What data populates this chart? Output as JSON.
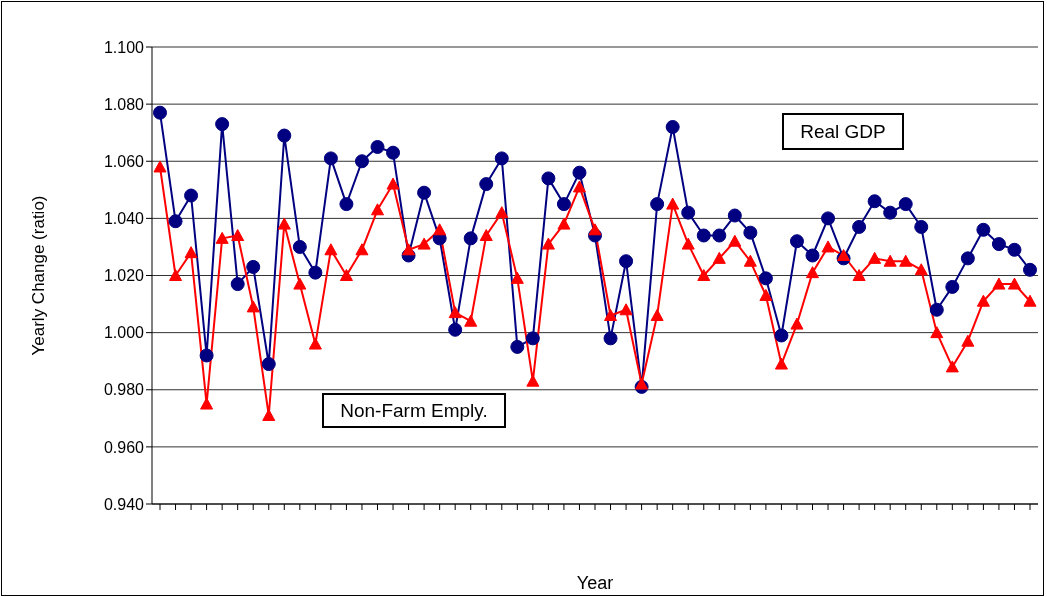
{
  "chart_data": {
    "type": "line",
    "xlabel": "Year",
    "ylabel": "Yearly Change (ratio)",
    "categories": [
      null,
      null,
      null,
      null,
      null,
      null,
      null,
      null,
      null,
      null,
      null,
      null,
      null,
      null,
      null,
      null,
      null,
      null,
      null,
      null,
      null,
      null,
      null,
      null,
      null,
      null,
      null,
      null,
      null,
      null,
      null,
      null,
      null,
      null,
      null,
      null,
      null,
      null,
      null,
      null,
      null,
      null,
      null,
      null,
      null,
      null,
      null,
      null,
      null,
      null,
      null,
      null,
      null,
      null,
      null,
      null,
      null
    ],
    "series": [
      {
        "name": "Real GDP",
        "color": "#000080",
        "marker": "circle",
        "values": [
          1.077,
          1.039,
          1.048,
          0.992,
          1.073,
          1.017,
          1.023,
          0.989,
          1.069,
          1.03,
          1.021,
          1.061,
          1.045,
          1.06,
          1.065,
          1.063,
          1.027,
          1.049,
          1.033,
          1.001,
          1.033,
          1.052,
          1.061,
          0.995,
          0.998,
          1.054,
          1.045,
          1.056,
          1.034,
          0.998,
          1.025,
          0.981,
          1.045,
          1.072,
          1.042,
          1.034,
          1.034,
          1.041,
          1.035,
          1.019,
          0.999,
          1.032,
          1.027,
          1.04,
          1.026,
          1.037,
          1.046,
          1.042,
          1.045,
          1.037,
          1.008,
          1.016,
          1.026,
          1.036,
          1.031,
          1.029,
          1.022
        ]
      },
      {
        "name": "Non-Farm Emply.",
        "color": "#ff0000",
        "marker": "triangle",
        "values": [
          1.058,
          1.02,
          1.028,
          0.975,
          1.033,
          1.034,
          1.009,
          0.971,
          1.038,
          1.017,
          0.996,
          1.029,
          1.02,
          1.029,
          1.043,
          1.052,
          1.029,
          1.031,
          1.036,
          1.007,
          1.004,
          1.034,
          1.042,
          1.019,
          0.983,
          1.031,
          1.038,
          1.051,
          1.036,
          1.006,
          1.008,
          0.982,
          1.006,
          1.045,
          1.031,
          1.02,
          1.026,
          1.032,
          1.025,
          1.013,
          0.989,
          1.003,
          1.021,
          1.03,
          1.027,
          1.02,
          1.026,
          1.025,
          1.025,
          1.022,
          1.0,
          0.988,
          0.997,
          1.011,
          1.017,
          1.017,
          1.011
        ]
      }
    ],
    "ylim": [
      0.94,
      1.1
    ],
    "yticks": [
      {
        "value": 0.94,
        "label": "0.940"
      },
      {
        "value": 0.96,
        "label": "0.960"
      },
      {
        "value": 0.98,
        "label": "0.980"
      },
      {
        "value": 1.0,
        "label": "1.000"
      },
      {
        "value": 1.02,
        "label": "1.020"
      },
      {
        "value": 1.04,
        "label": "1.040"
      },
      {
        "value": 1.06,
        "label": "1.060"
      },
      {
        "value": 1.08,
        "label": "1.080"
      },
      {
        "value": 1.1,
        "label": "1.100"
      }
    ],
    "grid": "y",
    "legend": false
  }
}
